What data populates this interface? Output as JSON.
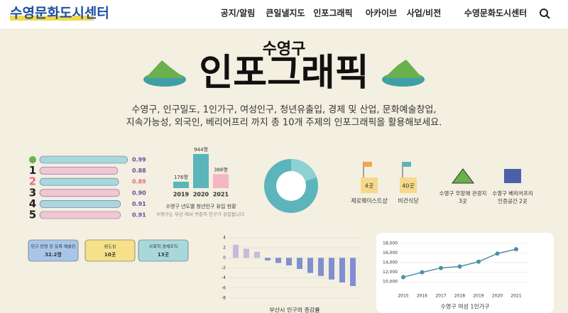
{
  "header": {
    "logo": "수영문화도시센터",
    "nav": [
      "공지/알림",
      "큰일낼지도",
      "인포그래픽",
      "아카이브",
      "사업/비전",
      "수영문화도시센터"
    ]
  },
  "hero": {
    "subtitle": "수영구",
    "title": "인포그래픽",
    "description": [
      "수영구, 인구밀도, 1인가구, 여성인구, 청년유출입, 경제 및 산업, 문화예술창업,",
      "지속가능성, 외국인, 베리어프리 까지 총 10개 주제의 인포그래픽을 활용해보세요."
    ]
  },
  "ranking": {
    "ranks": [
      "1",
      "2",
      "3",
      "4",
      "5"
    ],
    "values": [
      0.99,
      0.88,
      0.89,
      0.9,
      0.91,
      0.91
    ],
    "value_labels": [
      "0.99",
      "0.88",
      "0.89",
      "0.90",
      "0.91",
      "0.91"
    ]
  },
  "inflow": {
    "type": "bar",
    "categories": [
      "2019",
      "2020",
      "2021"
    ],
    "values": [
      176,
      944,
      386
    ],
    "value_labels": [
      "176명",
      "944명",
      "386명"
    ],
    "caption": "수영구 년도별 청년인구 유입 현황",
    "note": "수영구는 부산 에서 꾸준히 인구가 유입됩니다."
  },
  "facilities": [
    {
      "count": "4곳",
      "label": "제로웨이스트샵"
    },
    {
      "count": "40곳",
      "label": "비건식당"
    },
    {
      "label": "수영구 무장애 관광지",
      "count": "3곳"
    },
    {
      "label": "수영구 베리어프리",
      "count": "인증공간 2곳"
    }
  ],
  "badges": [
    {
      "label": "인구 만명 당 등록 예술인",
      "value": "32.2명"
    },
    {
      "label": "원도심",
      "value": "10곳"
    },
    {
      "label": "사회적 경제조직",
      "value": "13곳"
    }
  ],
  "change": {
    "type": "bar",
    "title": "부산시 인구의 증감률",
    "values": [
      2.6,
      1.8,
      1.2,
      -0.5,
      -1.0,
      -1.5,
      -2.2,
      -3.0,
      -3.6,
      -4.3,
      -4.9,
      -5.6
    ],
    "ylim": [
      -8,
      4
    ],
    "yticks": [
      4,
      2,
      0,
      -2,
      -4,
      -6,
      -8
    ]
  },
  "women": {
    "type": "line",
    "title": "수영구 여성 1인가구",
    "x": [
      "2015",
      "2016",
      "2017",
      "2018",
      "2019",
      "2020",
      "2021"
    ],
    "values": [
      11000,
      12000,
      12900,
      13200,
      14200,
      15900,
      16800
    ],
    "ylim": [
      9000,
      18000
    ],
    "yticks": [
      {
        "value": 10000,
        "label": "10,000"
      },
      {
        "value": 12000,
        "label": "12,000"
      },
      {
        "value": 14000,
        "label": "14,000"
      },
      {
        "value": 16000,
        "label": "16,000"
      },
      {
        "value": 18000,
        "label": "18,000"
      }
    ]
  }
}
